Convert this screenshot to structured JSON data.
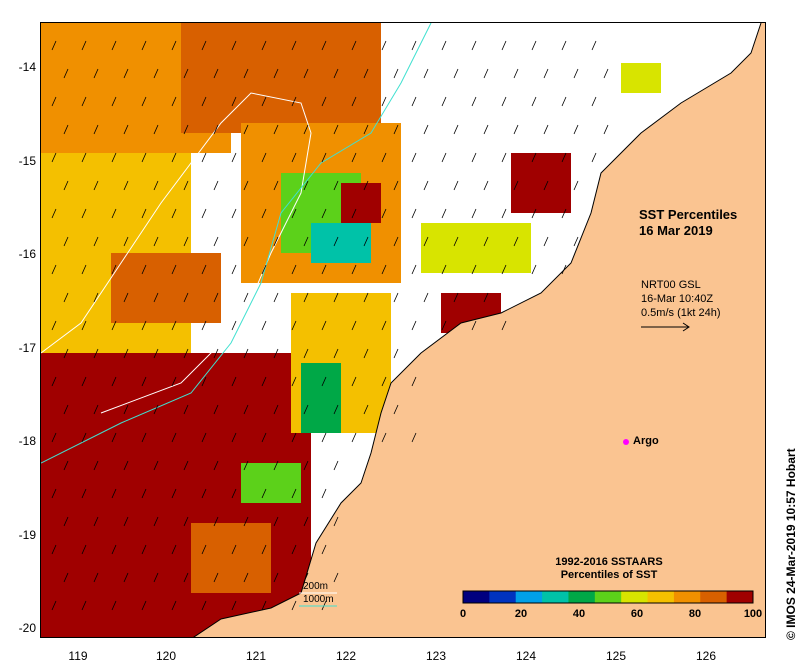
{
  "map": {
    "title_line1": "SST Percentiles",
    "title_line2": "16 Mar 2019",
    "current_source": "NRT00 GSL",
    "current_time": "16-Mar 10:40Z",
    "current_scale": "0.5m/s (1kt 24h)",
    "argo_label": "Argo",
    "credit": "© IMOS 24-Mar-2019 10:57 Hobart",
    "land_color": "#fac491",
    "no_data_color": "#ffffff"
  },
  "axes": {
    "longitude_ticks": [
      "119",
      "120",
      "121",
      "122",
      "123",
      "124",
      "125",
      "126"
    ],
    "latitude_ticks": [
      "-14",
      "-15",
      "-16",
      "-17",
      "-18",
      "-19",
      "-20"
    ]
  },
  "legend": {
    "title_line1": "1992-2016 SSTAARS",
    "title_line2": "Percentiles of SST",
    "tick_labels": [
      "0",
      "20",
      "40",
      "60",
      "80",
      "100"
    ],
    "colors": [
      "#00007f",
      "#0033bf",
      "#00a0e8",
      "#00c2a8",
      "#00a847",
      "#5cd11a",
      "#d8e400",
      "#f4c000",
      "#f09000",
      "#d86000",
      "#a00000"
    ]
  },
  "isobaths": {
    "shallow_label": "200m",
    "deep_label": "1000m",
    "shallow_color": "#ffffff",
    "deep_color": "#40e0d0"
  }
}
